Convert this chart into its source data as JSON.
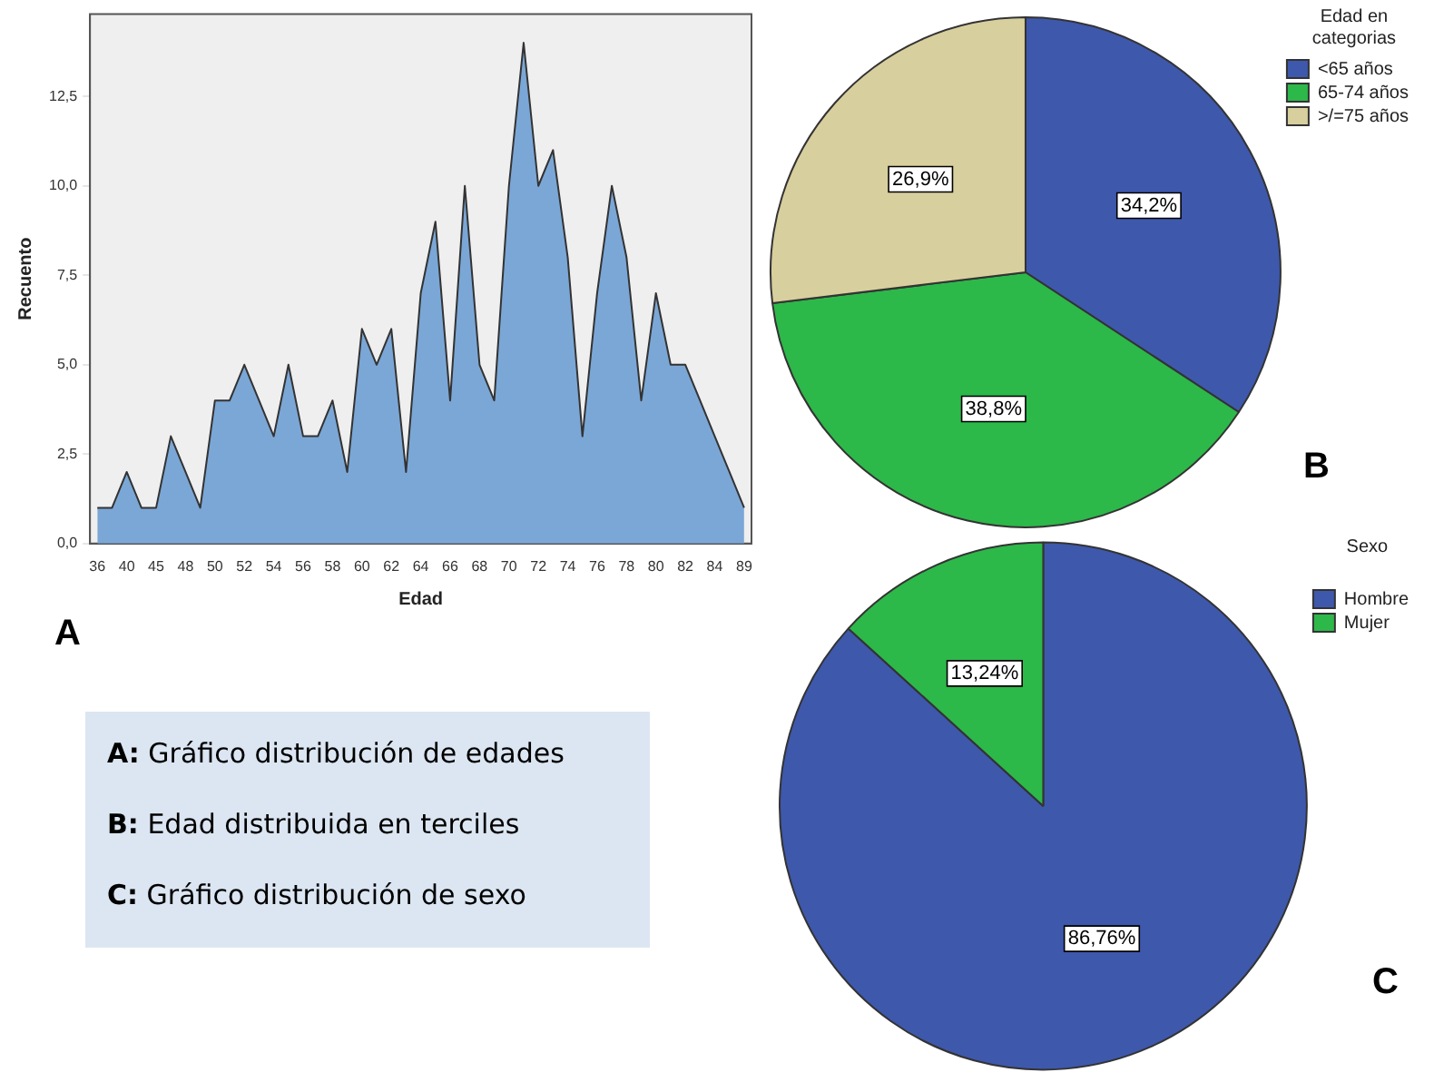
{
  "chart_data": [
    {
      "type": "area",
      "xlabel": "Edad",
      "ylabel": "Recuento",
      "annotations": [
        "A"
      ],
      "categories": [
        "36",
        null,
        "40",
        null,
        "45",
        null,
        "48",
        null,
        "50",
        null,
        "52",
        null,
        "54",
        null,
        "56",
        null,
        "58",
        null,
        "60",
        null,
        "62",
        null,
        "64",
        null,
        "66",
        null,
        "68",
        null,
        "70",
        null,
        "72",
        null,
        "74",
        null,
        "76",
        null,
        "78",
        null,
        "80",
        null,
        "82",
        null,
        "84",
        null,
        "89"
      ],
      "values": [
        1,
        1,
        2,
        1,
        1,
        3,
        2,
        1,
        4,
        4,
        5,
        4,
        3,
        5,
        3,
        3,
        4,
        2,
        6,
        5,
        6,
        2,
        7,
        9,
        4,
        10,
        5,
        4,
        10,
        14,
        10,
        11,
        8,
        3,
        7,
        10,
        8,
        4,
        7,
        5,
        5,
        4,
        3,
        2,
        1
      ],
      "color": "#7ba7d6",
      "ylim": [
        0,
        14.8
      ],
      "yticks": [
        {
          "value": 0,
          "label": "0,0"
        },
        {
          "value": 2.5,
          "label": "2,5"
        },
        {
          "value": 5,
          "label": "5,0"
        },
        {
          "value": 7.5,
          "label": "7,5"
        },
        {
          "value": 10,
          "label": "10,0"
        },
        {
          "value": 12.5,
          "label": "12,5"
        }
      ],
      "grid": false,
      "legend": false
    },
    {
      "type": "pie",
      "legend_title": "Edad en categorias",
      "annotations": [
        "B"
      ],
      "categories": [
        "<65 años",
        "65-74 años",
        ">/=75 años"
      ],
      "values": [
        34.2,
        38.8,
        26.9
      ],
      "value_labels": [
        "34,2%",
        "38,8%",
        "26,9%"
      ],
      "colors": [
        "#3e58ac",
        "#2db84a",
        "#d8cf9e"
      ],
      "legend": "top right"
    },
    {
      "type": "pie",
      "legend_title": "Sexo",
      "annotations": [
        "C"
      ],
      "categories": [
        "Hombre",
        "Mujer"
      ],
      "values": [
        86.76,
        13.24
      ],
      "value_labels": [
        "86,76%",
        "13,24%"
      ],
      "colors": [
        "#3e58ac",
        "#2db84a"
      ],
      "legend": "top right"
    },
    {
      "type": "other",
      "annotations": [
        "A: Gráfico distribución de edades",
        "B: Edad distribuida en terciles",
        "C: Gráfico distribución de sexo"
      ]
    }
  ]
}
